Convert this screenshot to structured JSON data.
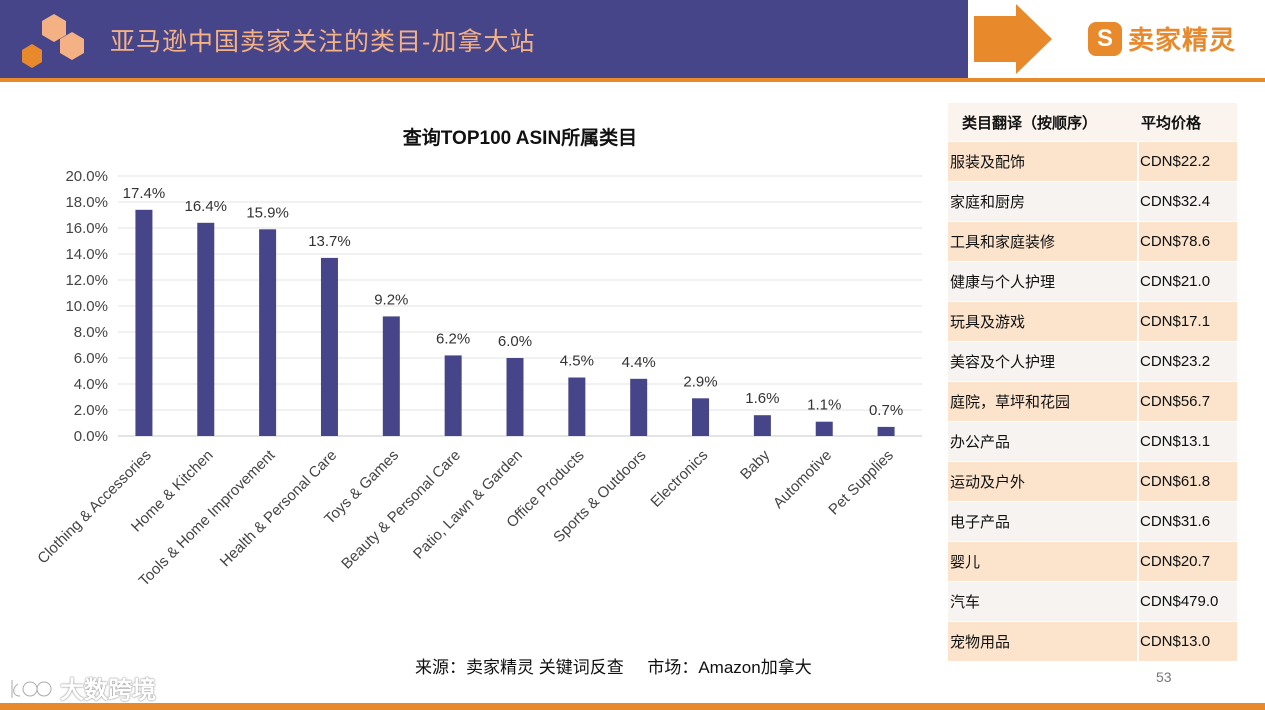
{
  "header": {
    "title": "亚马逊中国卖家关注的类目-加拿大站",
    "brand_logo_glyph": "S",
    "brand_name": "卖家精灵",
    "band_color": "#474589",
    "accent_color": "#e8892c"
  },
  "chart_data": {
    "type": "bar",
    "title": "查询TOP100 ASIN所属类目",
    "categories": [
      "Clothing & Accessories",
      "Home & Kitchen",
      "Tools & Home Improvement",
      "Health & Personal Care",
      "Toys & Games",
      "Beauty & Personal Care",
      "Patio, Lawn & Garden",
      "Office Products",
      "Sports & Outdoors",
      "Electronics",
      "Baby",
      "Automotive",
      "Pet Supplies"
    ],
    "values": [
      17.4,
      16.4,
      15.9,
      13.7,
      9.2,
      6.2,
      6.0,
      4.5,
      4.4,
      2.9,
      1.6,
      1.1,
      0.7
    ],
    "value_labels": [
      "17.4%",
      "16.4%",
      "15.9%",
      "13.7%",
      "9.2%",
      "6.2%",
      "6.0%",
      "4.5%",
      "4.4%",
      "2.9%",
      "1.6%",
      "1.1%",
      "0.7%"
    ],
    "y_ticks": [
      "0.0%",
      "2.0%",
      "4.0%",
      "6.0%",
      "8.0%",
      "10.0%",
      "12.0%",
      "14.0%",
      "16.0%",
      "18.0%",
      "20.0%"
    ],
    "ylim": [
      0,
      20
    ],
    "grid": true,
    "bar_color": "#474589"
  },
  "table": {
    "headers": [
      "类目翻译（按顺序）",
      "平均价格"
    ],
    "rows": [
      {
        "category": "服装及配饰",
        "price": "CDN$22.2"
      },
      {
        "category": "家庭和厨房",
        "price": "CDN$32.4"
      },
      {
        "category": "工具和家庭装修",
        "price": "CDN$78.6"
      },
      {
        "category": "健康与个人护理",
        "price": "CDN$21.0"
      },
      {
        "category": "玩具及游戏",
        "price": "CDN$17.1"
      },
      {
        "category": "美容及个人护理",
        "price": "CDN$23.2"
      },
      {
        "category": "庭院，草坪和花园",
        "price": "CDN$56.7"
      },
      {
        "category": "办公产品",
        "price": "CDN$13.1"
      },
      {
        "category": "运动及户外",
        "price": "CDN$61.8"
      },
      {
        "category": "电子产品",
        "price": "CDN$31.6"
      },
      {
        "category": "婴儿",
        "price": "CDN$20.7"
      },
      {
        "category": "汽车",
        "price": "CDN$479.0"
      },
      {
        "category": "宠物用品",
        "price": "CDN$13.0"
      }
    ]
  },
  "footer": {
    "source": "来源：卖家精灵 关键词反查     市场：Amazon加拿大",
    "page_number": "53",
    "watermark": "大数跨境"
  }
}
